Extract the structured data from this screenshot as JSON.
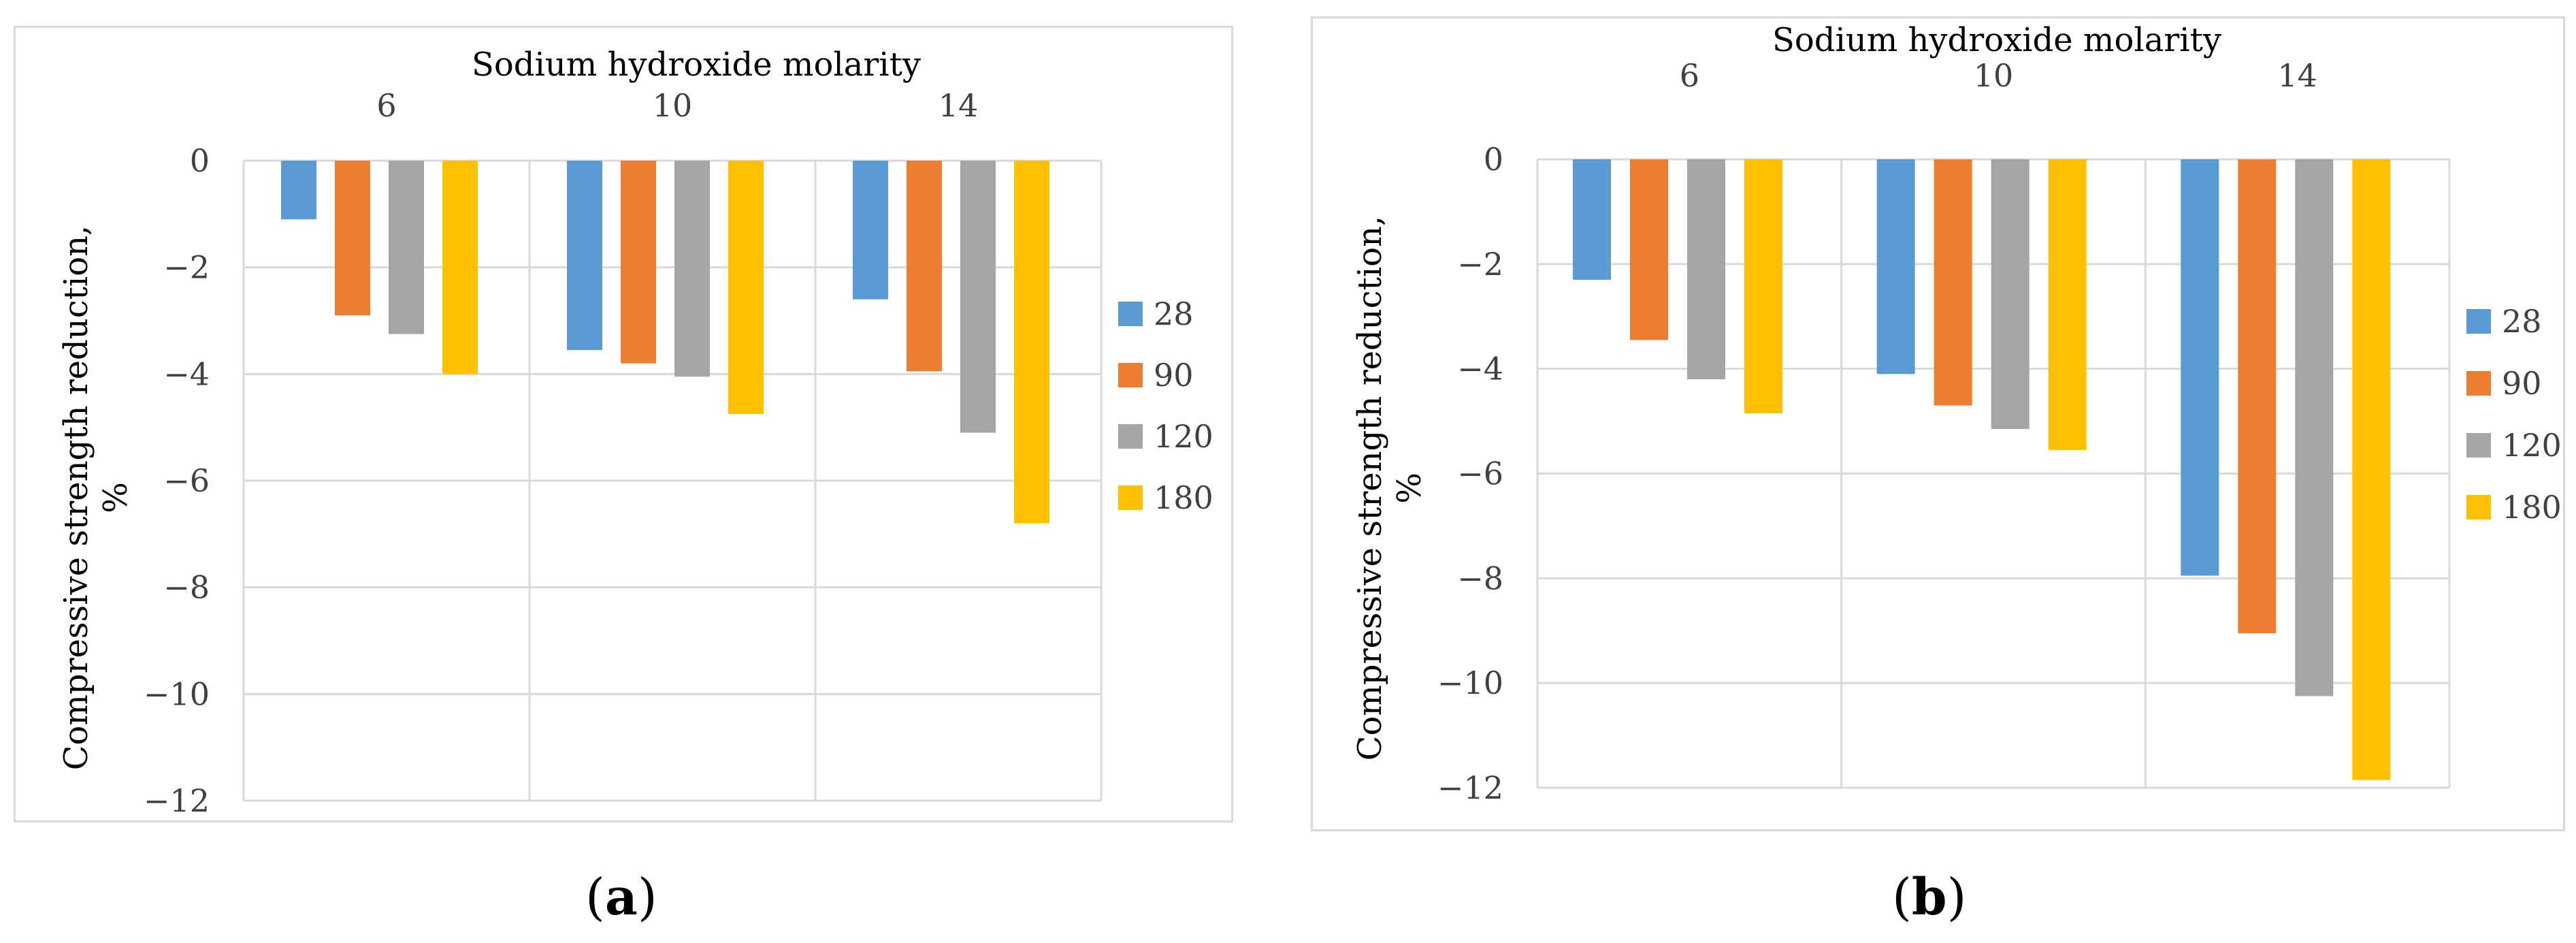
{
  "chart_data": [
    {
      "type": "bar",
      "panel": "a",
      "title": "Sodium hydroxide molarity",
      "ylabel_line1": "Compressive strength reduction,",
      "ylabel_line2": "%",
      "categories": [
        "6",
        "10",
        "14"
      ],
      "ylim": [
        -12,
        0
      ],
      "yticks": [
        0,
        -2,
        -4,
        -6,
        -8,
        -10,
        -12
      ],
      "series": [
        {
          "name": "28",
          "color": "#5b9bd5",
          "values": [
            -1.1,
            -3.55,
            -2.6
          ]
        },
        {
          "name": "90",
          "color": "#ed7d31",
          "values": [
            -2.9,
            -3.8,
            -3.95
          ]
        },
        {
          "name": "120",
          "color": "#a5a5a5",
          "values": [
            -3.25,
            -4.05,
            -5.1
          ]
        },
        {
          "name": "180",
          "color": "#ffc000",
          "values": [
            -4.0,
            -4.75,
            -6.8
          ]
        }
      ],
      "caption": "a"
    },
    {
      "type": "bar",
      "panel": "b",
      "title": "Sodium hydroxide molarity",
      "ylabel_line1": "Compressive strength reduction,",
      "ylabel_line2": "%",
      "categories": [
        "6",
        "10",
        "14"
      ],
      "ylim": [
        -12,
        0
      ],
      "yticks": [
        0,
        -2,
        -4,
        -6,
        -8,
        -10,
        -12
      ],
      "series": [
        {
          "name": "28",
          "color": "#5b9bd5",
          "values": [
            -2.3,
            -4.1,
            -7.95
          ]
        },
        {
          "name": "90",
          "color": "#ed7d31",
          "values": [
            -3.45,
            -4.7,
            -9.05
          ]
        },
        {
          "name": "120",
          "color": "#a5a5a5",
          "values": [
            -4.2,
            -5.15,
            -10.25
          ]
        },
        {
          "name": "180",
          "color": "#ffc000",
          "values": [
            -4.85,
            -5.55,
            -11.85
          ]
        }
      ],
      "caption": "b"
    }
  ]
}
